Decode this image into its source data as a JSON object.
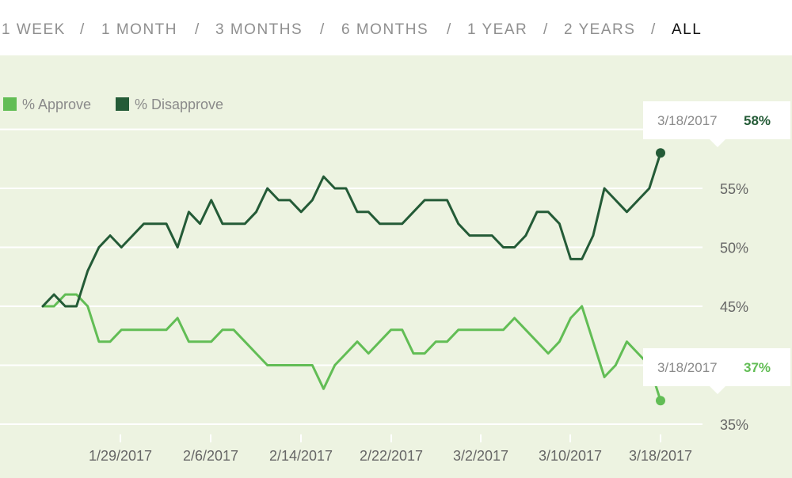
{
  "range_selector": {
    "items": [
      "1 WEEK",
      "1 MONTH",
      "3 MONTHS",
      "6 MONTHS",
      "1 YEAR",
      "2 YEARS",
      "ALL"
    ],
    "separator": "/",
    "active": "ALL"
  },
  "colors": {
    "approve": "#62bd55",
    "disapprove": "#245b37",
    "grid": "#ffffff",
    "background": "#edf3e1"
  },
  "chart_data": {
    "type": "line",
    "title": "",
    "xlabel": "",
    "ylabel": "",
    "ylim": [
      34,
      61
    ],
    "yticks": [
      35,
      40,
      45,
      50,
      55,
      60
    ],
    "ytick_labels": [
      "35%",
      "",
      "45%",
      "50%",
      "55%",
      ""
    ],
    "xticks": [
      "1/29/2017",
      "2/6/2017",
      "2/14/2017",
      "2/22/2017",
      "3/2/2017",
      "3/10/2017",
      "3/18/2017"
    ],
    "x_start": "1/20/2017",
    "legend": [
      "% Approve",
      "% Disapprove"
    ],
    "series": [
      {
        "name": "% Approve",
        "key": "approve",
        "values": [
          45,
          45,
          46,
          46,
          45,
          42,
          42,
          43,
          43,
          43,
          43,
          43,
          44,
          42,
          42,
          42,
          43,
          43,
          42,
          41,
          40,
          40,
          40,
          40,
          40,
          38,
          40,
          41,
          42,
          41,
          42,
          43,
          43,
          41,
          41,
          42,
          42,
          43,
          43,
          43,
          43,
          43,
          44,
          43,
          42,
          41,
          42,
          44,
          45,
          42,
          39,
          40,
          42,
          41,
          40,
          37
        ]
      },
      {
        "name": "% Disapprove",
        "key": "disapprove",
        "values": [
          45,
          46,
          45,
          45,
          48,
          50,
          51,
          50,
          51,
          52,
          52,
          52,
          50,
          53,
          52,
          54,
          52,
          52,
          52,
          53,
          55,
          54,
          54,
          53,
          54,
          56,
          55,
          55,
          53,
          53,
          52,
          52,
          52,
          53,
          54,
          54,
          54,
          52,
          51,
          51,
          51,
          50,
          50,
          51,
          53,
          53,
          52,
          49,
          49,
          51,
          55,
          54,
          53,
          54,
          55,
          58
        ]
      }
    ],
    "tooltips": [
      {
        "date": "3/18/2017",
        "value": "58%",
        "series": "disapprove"
      },
      {
        "date": "3/18/2017",
        "value": "37%",
        "series": "approve"
      }
    ]
  }
}
